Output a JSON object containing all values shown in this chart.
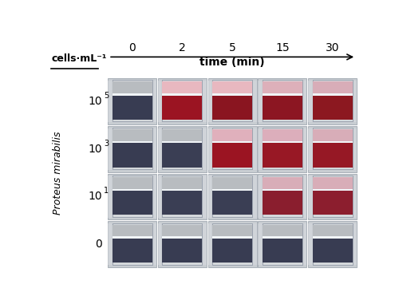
{
  "title": "time (min)",
  "ylabel": "Proteus mirabilis",
  "xlabel_label": "cells·mL⁻¹",
  "time_labels": [
    "0",
    "2",
    "5",
    "15",
    "30"
  ],
  "row_exponents": [
    "5",
    "3",
    "1",
    ""
  ],
  "row_bases": [
    "10",
    "10",
    "10",
    "0"
  ],
  "background_color": "#ffffff",
  "cuvette_outer_color": "#c8cdd2",
  "cuvette_inner_bg": "#d4d8db",
  "cuvette_frame_color": "#a0a8b0",
  "liquid_top_colors": [
    [
      "#b8bcc0",
      "#e8b8c0",
      "#e8b8c0",
      "#ddb0ba",
      "#d8adb8"
    ],
    [
      "#b8bcc0",
      "#b8bcc0",
      "#e0b0bc",
      "#dcaebb",
      "#d8adb8"
    ],
    [
      "#b8bcc0",
      "#b8bcc0",
      "#b8bcc0",
      "#d8adb8",
      "#d8adb8"
    ],
    [
      "#b8bcc0",
      "#b8bcc0",
      "#b8bcc0",
      "#b8bcc0",
      "#b8bcc0"
    ]
  ],
  "liquid_bottom_colors": [
    [
      "#383c52",
      "#9b1422",
      "#8a1520",
      "#8c1622",
      "#8c1820"
    ],
    [
      "#383c52",
      "#3a3e54",
      "#9b1422",
      "#981825",
      "#961825"
    ],
    [
      "#383c52",
      "#3a3e54",
      "#3a3e54",
      "#8a1e2e",
      "#8c1e2e"
    ],
    [
      "#383c52",
      "#383c52",
      "#383c52",
      "#383c52",
      "#383c52"
    ]
  ],
  "highlight_color": "#e8ecef",
  "white_strip_color": "#f0f4f7",
  "nrows": 4,
  "ncols": 5
}
